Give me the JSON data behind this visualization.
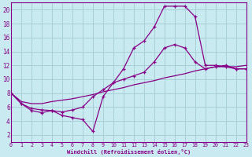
{
  "bg_color": "#c8eaf0",
  "line_color": "#880088",
  "grid_color": "#a8d0d8",
  "xlabel": "Windchill (Refroidissement éolien,°C)",
  "ylim": [
    1,
    21
  ],
  "xlim": [
    0,
    23
  ],
  "yticks": [
    2,
    4,
    6,
    8,
    10,
    12,
    14,
    16,
    18,
    20
  ],
  "xticks": [
    0,
    1,
    2,
    3,
    4,
    5,
    6,
    7,
    8,
    9,
    10,
    11,
    12,
    13,
    14,
    15,
    16,
    17,
    18,
    19,
    20,
    21,
    22,
    23
  ],
  "line1_x": [
    0,
    1,
    2,
    3,
    4,
    5,
    6,
    7,
    8,
    9,
    10,
    11,
    12,
    13,
    14,
    15,
    16,
    17,
    18,
    19,
    20,
    21,
    22,
    23
  ],
  "line1_y": [
    8.0,
    6.5,
    5.5,
    5.2,
    5.5,
    4.8,
    4.5,
    4.2,
    2.5,
    7.5,
    9.5,
    11.5,
    14.5,
    15.5,
    17.5,
    20.5,
    20.5,
    20.5,
    19.0,
    12.0,
    12.0,
    11.8,
    11.5,
    11.5
  ],
  "line2_x": [
    0,
    1,
    2,
    3,
    4,
    5,
    6,
    7,
    8,
    9,
    10,
    11,
    12,
    13,
    14,
    15,
    16,
    17,
    18,
    19,
    20,
    21,
    22,
    23
  ],
  "line2_y": [
    8.0,
    6.5,
    5.8,
    5.6,
    5.5,
    5.3,
    5.6,
    6.0,
    7.5,
    8.5,
    9.5,
    10.0,
    10.5,
    11.0,
    12.5,
    14.5,
    15.0,
    14.5,
    12.5,
    11.5,
    11.8,
    12.0,
    11.5,
    11.5
  ],
  "line3_x": [
    0,
    1,
    2,
    3,
    4,
    5,
    6,
    7,
    8,
    9,
    10,
    11,
    12,
    13,
    14,
    15,
    16,
    17,
    18,
    19,
    20,
    21,
    22,
    23
  ],
  "line3_y": [
    8.0,
    6.8,
    6.5,
    6.5,
    6.8,
    7.0,
    7.2,
    7.5,
    7.8,
    8.2,
    8.5,
    8.8,
    9.2,
    9.5,
    9.8,
    10.2,
    10.5,
    10.8,
    11.2,
    11.5,
    11.8,
    11.8,
    11.8,
    12.0
  ]
}
